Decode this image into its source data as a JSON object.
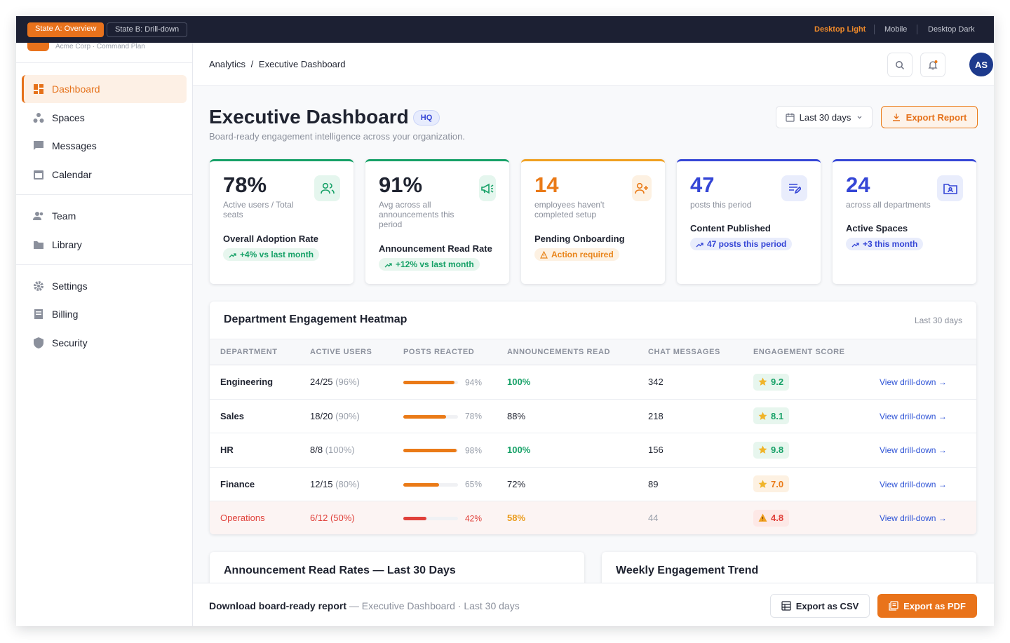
{
  "topbar": {
    "states": [
      "State A: Overview",
      "State B: Drill-down"
    ],
    "views": [
      "Desktop Light",
      "Mobile",
      "Desktop Dark"
    ]
  },
  "sidebar": {
    "org": "Acme Corp · Command Plan",
    "nav": [
      "Dashboard",
      "Spaces",
      "Messages",
      "Calendar",
      "Team",
      "Library",
      "Settings",
      "Billing",
      "Security"
    ]
  },
  "header": {
    "breadcrumb": [
      "Analytics",
      "Executive Dashboard"
    ],
    "separator": "/",
    "avatar": "AS"
  },
  "page": {
    "title": "Executive Dashboard",
    "badge": "HQ",
    "subtitle": "Board-ready engagement intelligence across your organization.",
    "date_range": "Last 30 days",
    "export": "Export Report"
  },
  "kpis": [
    {
      "value": "78%",
      "description": "Active users / Total seats",
      "label": "Overall Adoption Rate",
      "trend": "+4% vs last month"
    },
    {
      "value": "91%",
      "description": "Avg across all announcements this period",
      "label": "Announcement Read Rate",
      "trend": "+12% vs last month"
    },
    {
      "value": "14",
      "description": "employees haven't completed setup",
      "label": "Pending Onboarding",
      "trend": "Action required"
    },
    {
      "value": "47",
      "description": "posts this period",
      "label": "Content Published",
      "trend": "47 posts this period"
    },
    {
      "value": "24",
      "description": "across all departments",
      "label": "Active Spaces",
      "trend": "+3 this month"
    }
  ],
  "heatmap": {
    "title": "Department Engagement Heatmap",
    "period": "Last 30 days",
    "columns": [
      "DEPARTMENT",
      "ACTIVE USERS",
      "POSTS REACTED",
      "ANNOUNCEMENTS READ",
      "CHAT MESSAGES",
      "ENGAGEMENT SCORE"
    ],
    "action": "View drill-down →",
    "rows": [
      {
        "department": "Engineering",
        "active_users": "24/25",
        "active_share": "(96%)",
        "posts_reacted": {
          "value": 94,
          "label": "94%"
        },
        "announcements_read": "100%",
        "chat_messages": 342,
        "engagement_score": "9.2"
      },
      {
        "department": "Sales",
        "active_users": "18/20",
        "active_share": "(90%)",
        "posts_reacted": {
          "value": 78,
          "label": "78%"
        },
        "announcements_read": "88%",
        "chat_messages": 218,
        "engagement_score": "8.1"
      },
      {
        "department": "HR",
        "active_users": "8/8",
        "active_share": "(100%)",
        "posts_reacted": {
          "value": 98,
          "label": "98%"
        },
        "announcements_read": "100%",
        "chat_messages": 156,
        "engagement_score": "9.8"
      },
      {
        "department": "Finance",
        "active_users": "12/15",
        "active_share": "(80%)",
        "posts_reacted": {
          "value": 65,
          "label": "65%"
        },
        "announcements_read": "72%",
        "chat_messages": 89,
        "engagement_score": "7.0"
      },
      {
        "department": "Operations",
        "active_users": "6/12",
        "active_share": "(50%)",
        "posts_reacted": {
          "value": 42,
          "label": "42%"
        },
        "announcements_read": "58%",
        "chat_messages": 44,
        "engagement_score": "4.8"
      }
    ]
  },
  "panels": [
    "Announcement Read Rates — Last 30 Days",
    "Weekly Engagement Trend"
  ],
  "footer": {
    "title": "Download board-ready report",
    "context": "— Executive Dashboard · Last 30 days",
    "csv": "Export as CSV",
    "pdf": "Export as PDF"
  }
}
